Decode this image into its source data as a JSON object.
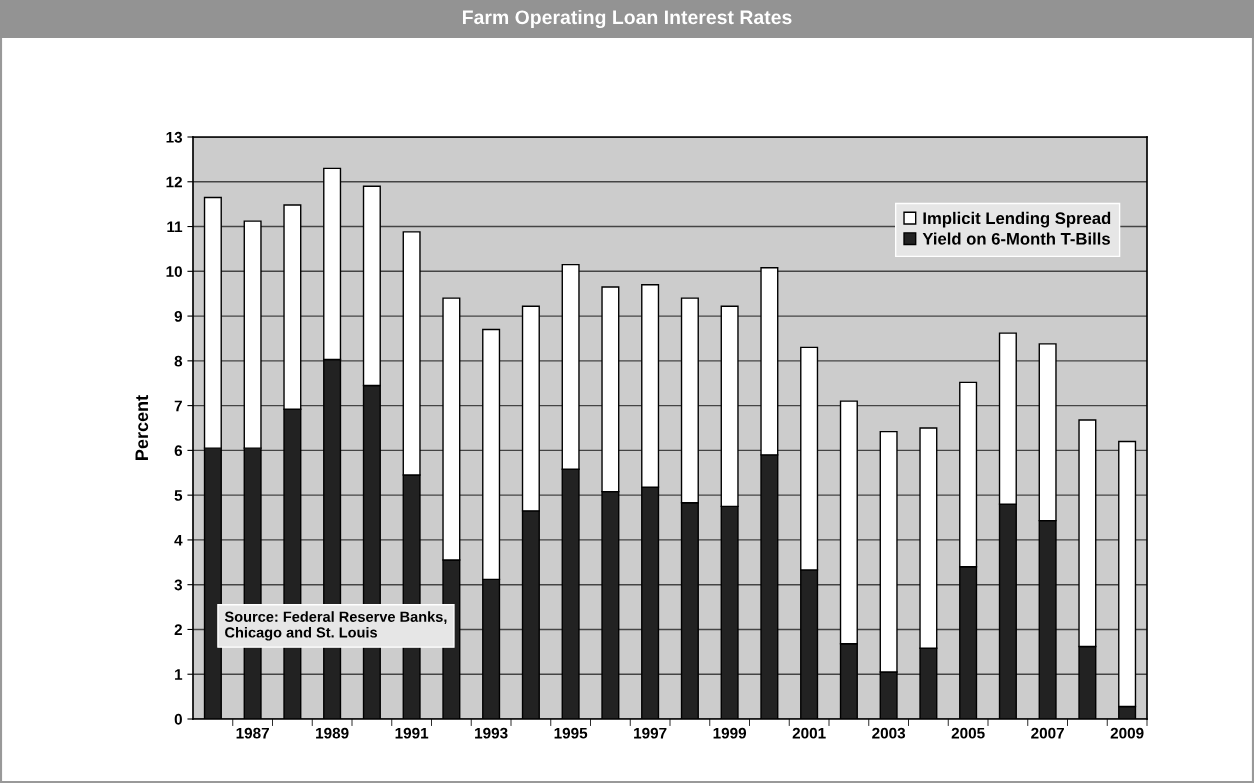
{
  "chart_data": {
    "type": "bar",
    "stacked": true,
    "title": "Farm Operating Loan Interest Rates",
    "ylabel": "Percent",
    "categories": [
      null,
      "1987",
      null,
      "1989",
      null,
      "1991",
      null,
      "1993",
      null,
      "1995",
      null,
      "1997",
      null,
      "1999",
      null,
      "2001",
      null,
      "2003",
      null,
      "2005",
      null,
      "2007",
      null,
      "2009"
    ],
    "series": [
      {
        "name": "Yield on 6-Month T-Bills",
        "color": "#222222",
        "values": [
          6.05,
          6.05,
          6.92,
          8.03,
          7.45,
          5.45,
          3.55,
          3.12,
          4.65,
          5.58,
          5.08,
          5.18,
          4.83,
          4.75,
          5.9,
          3.33,
          1.68,
          1.05,
          1.58,
          3.4,
          4.8,
          4.43,
          1.62,
          0.28
        ]
      },
      {
        "name": "Implicit Lending Spread",
        "color": "#ffffff",
        "values": [
          5.6,
          5.07,
          4.56,
          4.27,
          4.45,
          5.43,
          5.85,
          5.58,
          4.57,
          4.57,
          4.57,
          4.52,
          4.57,
          4.47,
          4.18,
          4.97,
          5.42,
          5.37,
          4.92,
          4.12,
          3.82,
          3.95,
          5.06,
          5.92
        ]
      }
    ],
    "ylim": [
      0,
      13
    ],
    "yticks": [
      0,
      1,
      2,
      3,
      4,
      5,
      6,
      7,
      8,
      9,
      10,
      11,
      12,
      13
    ],
    "grid": "y",
    "legend": "top right",
    "annotations": [
      "Source: Federal Reserve Banks,\nChicago and St. Louis"
    ]
  }
}
